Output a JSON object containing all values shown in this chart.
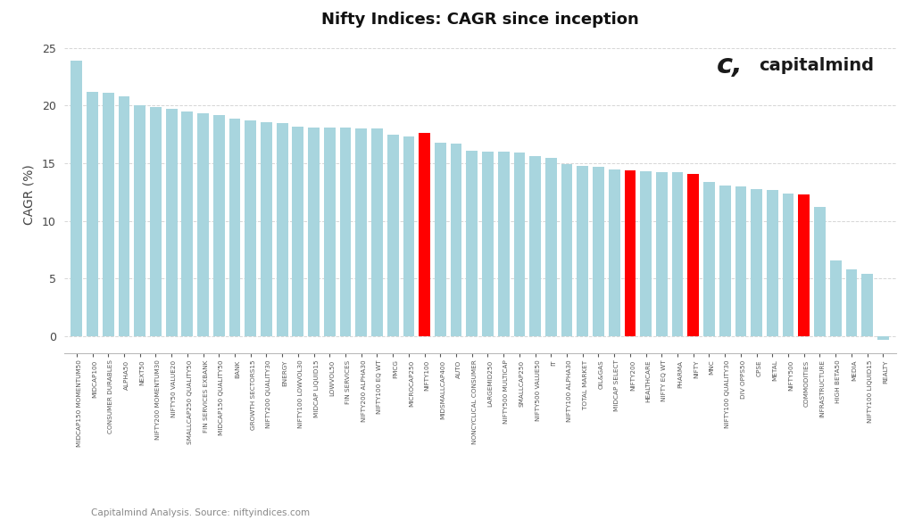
{
  "title": "Nifty Indices: CAGR since inception",
  "ylabel": "CAGR (%)",
  "subtitle": "Capitalmind Analysis. Source: niftyindices.com",
  "categories": [
    "MIDCAP150 MOMENTUM50",
    "MIDCAP100",
    "CONSUMER DURABLES",
    "ALPHA50",
    "NEXT50",
    "NIFTY200 MOMENTUM30",
    "NIFTY50 VALUE20",
    "SMALLCAP250 QUALITY50",
    "FIN SERVICES EXBANK",
    "MIDCAP150 QUALITY50",
    "BANK",
    "GROWTH SECTORS15",
    "NIFTY200 QUALITY30",
    "ENERGY",
    "NIFTY100 LOWVOL30",
    "MIDCAP LIQUID15",
    "LOWVOL50",
    "FIN SERVICES",
    "NIFTY200 ALPHA30",
    "NIFTY100 EQ WT",
    "FMCG",
    "MICROCAP250",
    "NIFTY100",
    "MIDSMALLCAP400",
    "AUTO",
    "NONCYCLICAL CONSUMER",
    "LARGEMID250",
    "NIFTY500 MULTICAP",
    "SMALLCAP250",
    "NIFTY500 VALUE50",
    "IT",
    "NIFTY100 ALPHA30",
    "TOTAL MARKET",
    "OIL&GAS",
    "MIDCAP SELECT",
    "NIFTY200",
    "HEALTHCARE",
    "NIFTY EQ WT",
    "PHARMA",
    "NIFTY",
    "MNC",
    "NIFTY100 QUALITY30",
    "DIV OPPS50",
    "CPSE",
    "METAL",
    "NIFTY500",
    "COMMODITIES",
    "INFRASTRUCTURE",
    "HIGH BETA50",
    "MEDIA",
    "NIFTY100 LIQUID15",
    "REALTY"
  ],
  "values": [
    23.9,
    21.2,
    21.1,
    20.8,
    20.0,
    19.9,
    19.7,
    19.5,
    19.3,
    19.2,
    18.9,
    18.7,
    18.6,
    18.5,
    18.2,
    18.1,
    18.1,
    18.1,
    18.0,
    18.0,
    17.5,
    17.3,
    17.6,
    16.8,
    16.7,
    16.1,
    16.0,
    16.0,
    15.9,
    15.6,
    15.5,
    14.9,
    14.8,
    14.7,
    14.5,
    14.4,
    14.3,
    14.2,
    14.2,
    14.1,
    13.4,
    13.1,
    13.0,
    12.8,
    12.7,
    12.4,
    12.3,
    11.2,
    6.6,
    5.8,
    5.4,
    -0.3
  ],
  "red_indices": [
    22,
    35,
    39,
    46
  ],
  "bar_color_light": "#A8D5DE",
  "bar_color_red": "#FF0000",
  "background_color": "#FFFFFF",
  "grid_color": "#CCCCCC",
  "ylim": [
    -1.5,
    26
  ],
  "yticks": [
    0,
    5,
    10,
    15,
    20,
    25
  ]
}
